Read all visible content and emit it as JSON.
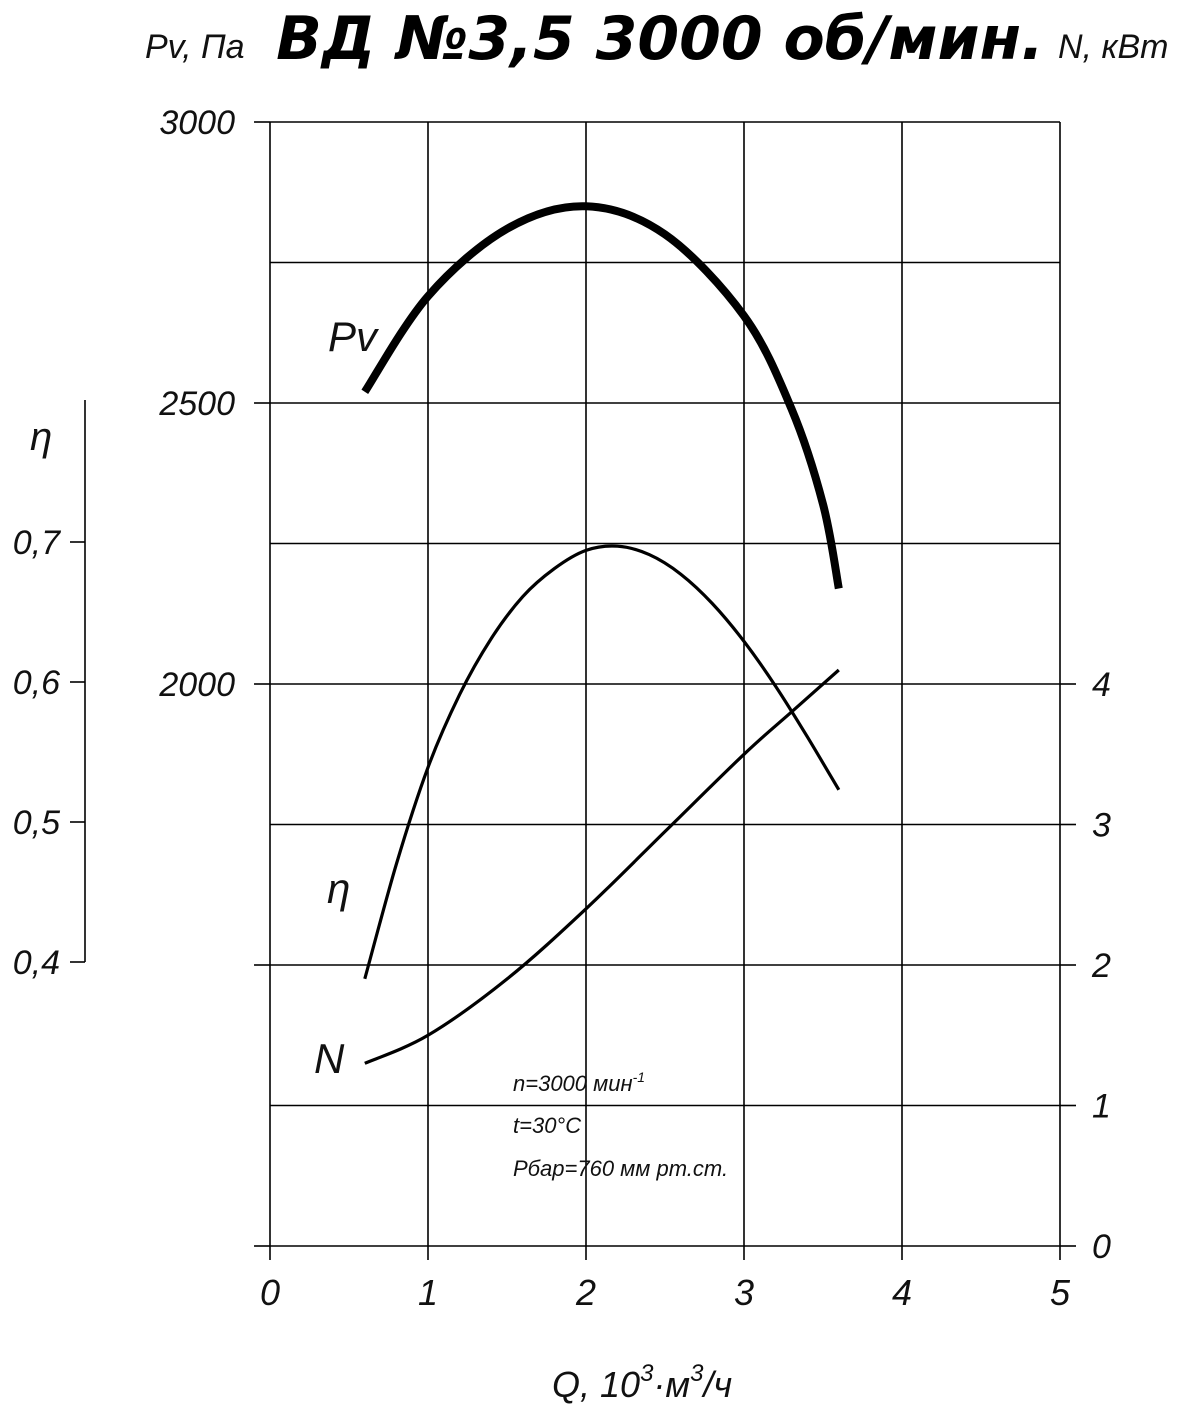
{
  "chart_data": {
    "type": "line",
    "title": "ВД №3,5 3000 об/мин.",
    "xlabel": "Q, 10³·м³/ч",
    "xlabel_parts": {
      "base": "Q,  10",
      "sup1": "3",
      "mid": "·м",
      "sup2": "3",
      "tail": "/ч"
    },
    "ylabel_left": "Pv, Па",
    "ylabel_right": "N, кВт",
    "ylabel_eta": "η",
    "xlim": [
      0,
      5
    ],
    "x_ticks": [
      "0",
      "1",
      "2",
      "3",
      "4",
      "5"
    ],
    "pv_axis": {
      "range": [
        1000,
        3000
      ],
      "tick_labels": [
        "3000",
        "2500",
        "2000"
      ],
      "tick_values": [
        3000,
        2500,
        2000
      ]
    },
    "n_axis": {
      "range": [
        0,
        8
      ],
      "tick_labels": [
        "4",
        "3",
        "2",
        "1",
        "0"
      ],
      "tick_values": [
        4,
        3,
        2,
        1,
        0
      ]
    },
    "eta_axis": {
      "tick_labels": [
        "0,7",
        "0,6",
        "0,5",
        "0,4"
      ],
      "tick_values": [
        0.7,
        0.6,
        0.5,
        0.4
      ]
    },
    "grid": true,
    "series": [
      {
        "name": "Pv",
        "axis": "pv",
        "weight": "bold",
        "x": [
          0.6,
          1.0,
          1.5,
          2.0,
          2.5,
          3.0,
          3.3,
          3.5,
          3.6
        ],
        "y": [
          2520,
          2690,
          2810,
          2850,
          2800,
          2655,
          2490,
          2320,
          2170
        ]
      },
      {
        "name": "η",
        "axis": "eta",
        "x": [
          0.6,
          0.8,
          1.0,
          1.2,
          1.4,
          1.6,
          1.8,
          2.0,
          2.2,
          2.4,
          2.6,
          2.8,
          3.0,
          3.2,
          3.4,
          3.6
        ],
        "y": [
          0.388,
          0.47,
          0.539,
          0.591,
          0.631,
          0.661,
          0.681,
          0.694,
          0.697,
          0.691,
          0.677,
          0.656,
          0.629,
          0.597,
          0.561,
          0.523
        ]
      },
      {
        "name": "N",
        "axis": "n",
        "x": [
          0.6,
          1.0,
          1.5,
          2.0,
          2.5,
          3.0,
          3.3,
          3.6
        ],
        "y": [
          1.3,
          1.5,
          1.9,
          2.4,
          2.95,
          3.5,
          3.8,
          4.1
        ]
      }
    ],
    "annotations": [
      {
        "text": "n=3000 мин",
        "sup": "-1"
      },
      {
        "text": "t=30°C",
        "sup": ""
      },
      {
        "text": "Pбар=760 мм рт.ст.",
        "sup": ""
      }
    ]
  }
}
